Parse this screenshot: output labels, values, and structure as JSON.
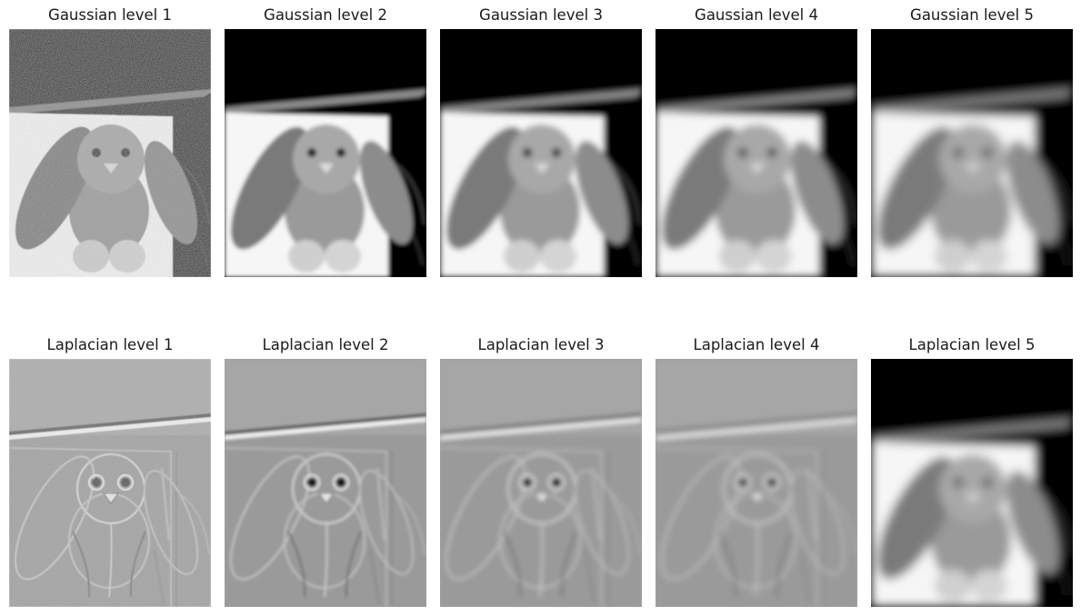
{
  "figure": {
    "gaussian_row": {
      "titles": [
        "Gaussian level 1",
        "Gaussian level 2",
        "Gaussian level 3",
        "Gaussian level 4",
        "Gaussian level 5"
      ],
      "blur": [
        0,
        2,
        3.2,
        4.2,
        5.2
      ]
    },
    "laplacian_row": {
      "titles": [
        "Laplacian level 1",
        "Laplacian level 2",
        "Laplacian level 3",
        "Laplacian level 4",
        "Laplacian level 5"
      ],
      "edge_blur": [
        0.4,
        1.6,
        2.6,
        3.4
      ],
      "last_level_blur": 5.2
    }
  },
  "colors": {
    "background": "#ffffff",
    "title_text": "#1a1a1a",
    "black": "#000000",
    "white": "#ffffff",
    "laplacian_gray": "#9c9c9c"
  }
}
